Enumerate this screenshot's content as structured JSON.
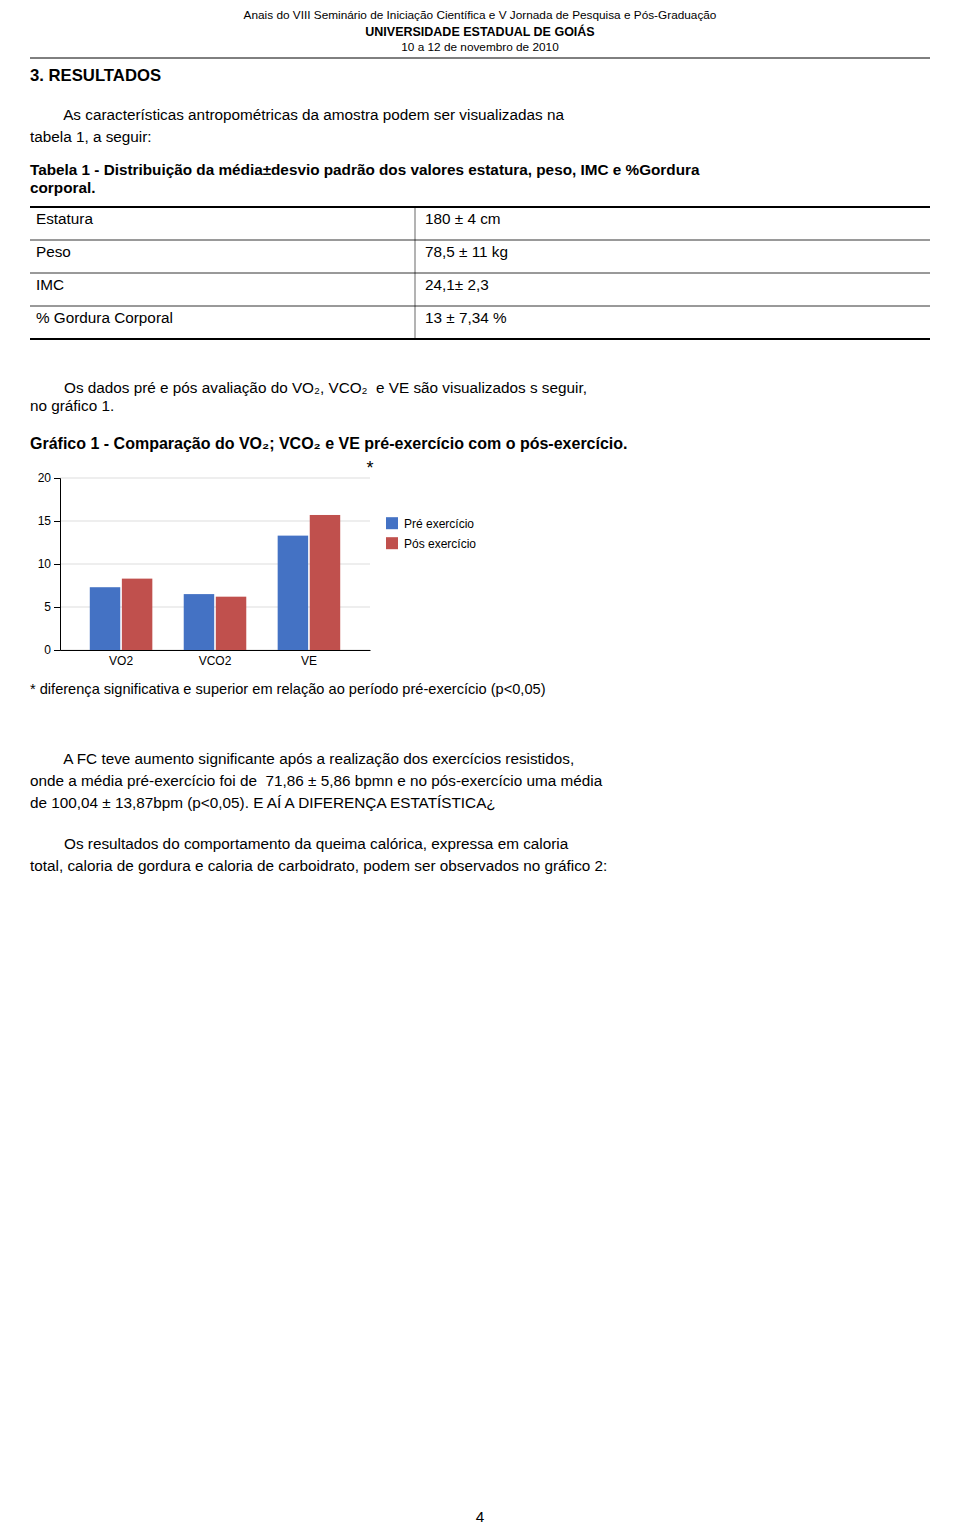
{
  "page": {
    "header": [
      "Anais do VIII Seminário de Iniciação Científica e V Jornada de Pesquisa e Pós-Graduação",
      "UNIVERSIDADE ESTADUAL DE GOIÁS",
      "10 a 12 de novembro de 2010"
    ],
    "section_title": "3. RESULTADOS",
    "para1": [
      "        As características antropométricas da amostra podem ser visualizadas na",
      "tabela 1, a seguir:"
    ],
    "table_title": [
      "Tabela 1 - Distribuição da média±desvio padrão dos valores estatura, peso, IMC e %Gordura",
      "corporal."
    ],
    "table": {
      "rows": [
        [
          "Estatura",
          "180 ± 4 cm"
        ],
        [
          "Peso",
          "78,5 ± 11 kg"
        ],
        [
          "IMC",
          "24,1± 2,3"
        ],
        [
          "% Gordura Corporal",
          "13 ± 7,34 %"
        ]
      ]
    },
    "para2": [
      "        Os dados pré e pós avaliação do VO₂, VCO₂  e VE são visualizados s seguir,",
      "no gráfico 1."
    ],
    "footnote": "* diferença significativa e superior em relação ao período pré-exercício (p<0,05)",
    "para3": [
      "        A FC teve aumento significante após a realização dos exercícios resistidos,",
      "onde a média pré-exercício foi de  71,86 ± 5,86 bpmn e no pós-exercício uma média",
      "de 100,04 ± 13,87bpm (p<0,05). E AÍ A DIFERENÇA ESTATÍSTICA¿"
    ],
    "para4": [
      "        Os resultados do comportamento da queima calórica, expressa em caloria",
      "total, caloria de gordura e caloria de carboidrato, podem ser observados no gráfico 2:"
    ],
    "page_number": "4"
  },
  "chart_data": {
    "type": "bar",
    "title": "Gráfico 1 - Comparação do VO₂; VCO₂ e VE pré-exercício com o pós-exercício.",
    "categories": [
      "VO2",
      "VCO2",
      "VE"
    ],
    "series": [
      {
        "name": "Pré exercício",
        "color": "#4472C4",
        "values": [
          7.3,
          6.5,
          13.3
        ]
      },
      {
        "name": "Pós exercício",
        "color": "#C0504D",
        "values": [
          8.3,
          6.2,
          15.7
        ]
      }
    ],
    "ylim": [
      0,
      20
    ],
    "yticks": [
      0,
      5,
      10,
      15,
      20
    ],
    "grid": true,
    "legend": "right",
    "annotations": [
      "*"
    ]
  }
}
